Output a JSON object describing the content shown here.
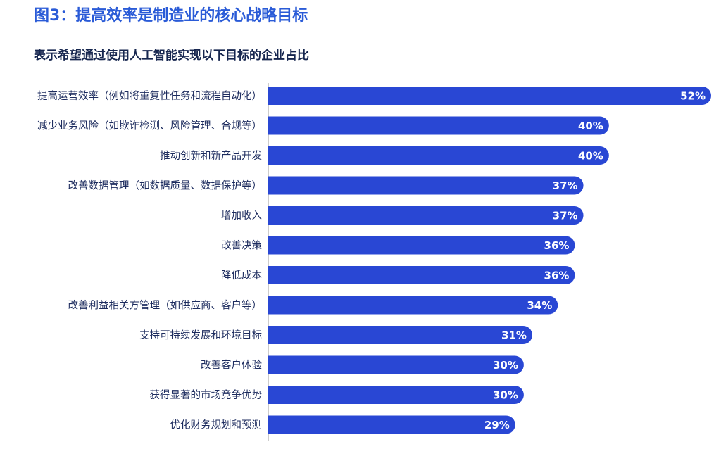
{
  "chart_data": {
    "type": "barh",
    "title": "图3：提高效率是制造业的核心战略目标",
    "subtitle": "表示希望通过使用人工智能实现以下目标的企业占比",
    "categories": [
      "提高运营效率（例如将重复性任务和流程自动化）",
      "减少业务风险（如欺诈检测、风险管理、合规等）",
      "推动创新和新产品开发",
      "改善数据管理（如数据质量、数据保护等）",
      "增加收入",
      "改善决策",
      "降低成本",
      "改善利益相关方管理（如供应商、客户等）",
      "支持可持续发展和环境目标",
      "改善客户体验",
      "获得显著的市场竞争优势",
      "优化财务规划和预测"
    ],
    "values": [
      52,
      40,
      40,
      37,
      37,
      36,
      36,
      34,
      31,
      30,
      30,
      29
    ],
    "value_labels": [
      "52%",
      "40%",
      "40%",
      "37%",
      "37%",
      "36%",
      "36%",
      "34%",
      "31%",
      "30%",
      "30%",
      "29%"
    ],
    "color": "#2947d4",
    "xlim": [
      0,
      52
    ]
  }
}
